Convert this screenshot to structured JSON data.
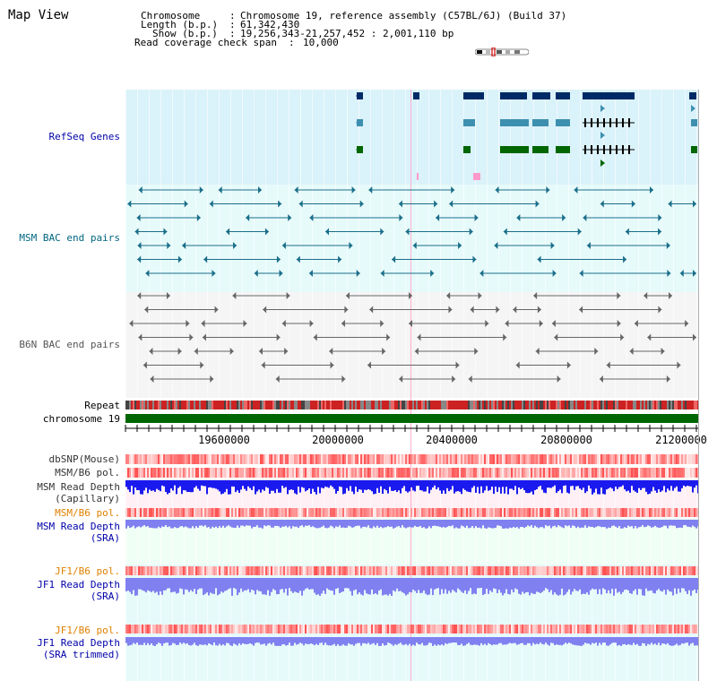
{
  "map": {
    "title": "Map View",
    "header": {
      "chromosome_label": "Chromosome",
      "chromosome_value": "Chromosome 19, reference assembly (C57BL/6J) (Build 37)",
      "length_label": "Length (b.p.)",
      "length_value": "61,342,430",
      "show_label": "Show (b.p.)",
      "show_value": "19,256,343-21,257,452 : 2,001,110 bp",
      "span_label": "Read coverage check span",
      "span_value": "10,000"
    }
  },
  "tracks": {
    "refseq": {
      "label": "RefSeq Genes",
      "color": "#0000aa"
    },
    "msm_bac": {
      "label": "MSM BAC end pairs",
      "color": "#006680"
    },
    "b6n_bac": {
      "label": "B6N BAC end pairs",
      "color": "#555555"
    },
    "repeat": {
      "label": "Repeat",
      "color": "#000000"
    },
    "chromosome": {
      "label": "chromosome 19",
      "color": "#000000"
    },
    "dbsnp": {
      "label": "dbSNP(Mouse)",
      "color": "#333333"
    },
    "msm_b6_pol": {
      "label": "MSM/B6 pol.",
      "color": "#333333"
    },
    "msm_depth_cap": {
      "label1": "MSM Read Depth",
      "label2": "(Capillary)",
      "color": "#333333"
    },
    "msm_b6_pol_sra": {
      "label": "MSM/B6 pol.",
      "color": "#e08000"
    },
    "msm_depth_sra": {
      "label1": "MSM Read Depth",
      "label2": "(SRA)",
      "color": "#0000aa"
    },
    "jf1_b6_pol": {
      "label": "JF1/B6 pol.",
      "color": "#e08000"
    },
    "jf1_depth_sra": {
      "label1": "JF1 Read Depth",
      "label2": "(SRA)",
      "color": "#0000aa"
    },
    "jf1_b6_pol_trim": {
      "label": "JF1/B6 pol.",
      "color": "#e08000"
    },
    "jf1_depth_trim": {
      "label1": "JF1 Read Depth",
      "label2": "(SRA trimmed)",
      "color": "#0000aa"
    }
  },
  "ruler": {
    "ticks": [
      "19600000",
      "20000000",
      "20400000",
      "20800000",
      "21200000"
    ]
  },
  "colors": {
    "refseq_bg": "#daf2fa",
    "msm_bg": "#e6fafa",
    "b6n_bg": "#f5f5f5",
    "pol_bg": "#fff0f5",
    "sra_bg": "#f0fff5",
    "jf1_bg": "#e6fafa",
    "navy": "#002a66",
    "teal": "#3d8fb0",
    "green": "#006600",
    "depth_blue": "#1a1aee",
    "depth_light": "#8080f0"
  }
}
